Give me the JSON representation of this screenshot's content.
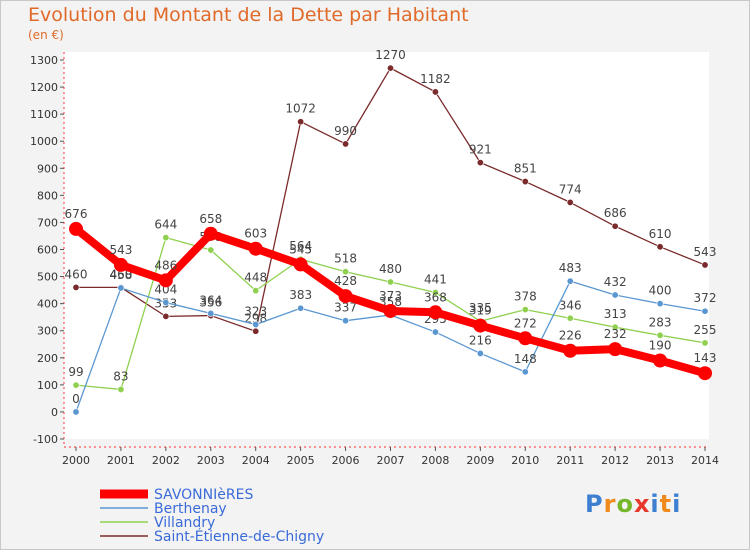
{
  "header": {
    "title": "Evolution du Montant de la Dette par Habitant",
    "unit": "(en €)"
  },
  "logo": {
    "text": "Proxiti"
  },
  "chart_data": {
    "type": "line",
    "title": "Evolution du Montant de la Dette par Habitant",
    "ylabel": "(en €)",
    "xlabel": "",
    "ylim": [
      -100,
      1300
    ],
    "yticks": [
      -100,
      0,
      100,
      200,
      300,
      400,
      500,
      600,
      700,
      800,
      900,
      1000,
      1100,
      1200,
      1300
    ],
    "categories": [
      "2000",
      "2001",
      "2002",
      "2003",
      "2004",
      "2005",
      "2006",
      "2007",
      "2008",
      "2009",
      "2010",
      "2011",
      "2012",
      "2013",
      "2014"
    ],
    "grid": false,
    "legend_position": "bottom-left",
    "series": [
      {
        "name": "SAVONNIèRES",
        "color": "#ff0000",
        "values": [
          676,
          543,
          486,
          658,
          603,
          545,
          428,
          373,
          368,
          319,
          272,
          226,
          232,
          190,
          143
        ]
      },
      {
        "name": "Berthenay",
        "color": "#5a97d1",
        "values": [
          0,
          458,
          404,
          364,
          323,
          383,
          337,
          358,
          295,
          216,
          148,
          483,
          432,
          400,
          372
        ]
      },
      {
        "name": "Villandry",
        "color": "#8fd14f",
        "values": [
          99,
          83,
          644,
          598,
          448,
          564,
          518,
          480,
          441,
          335,
          378,
          346,
          313,
          283,
          255
        ]
      },
      {
        "name": "Saint-Étienne-de-Chigny",
        "color": "#7a2a2a",
        "values": [
          460,
          460,
          353,
          356,
          298,
          1072,
          990,
          1270,
          1182,
          921,
          851,
          774,
          686,
          610,
          543
        ]
      }
    ]
  }
}
